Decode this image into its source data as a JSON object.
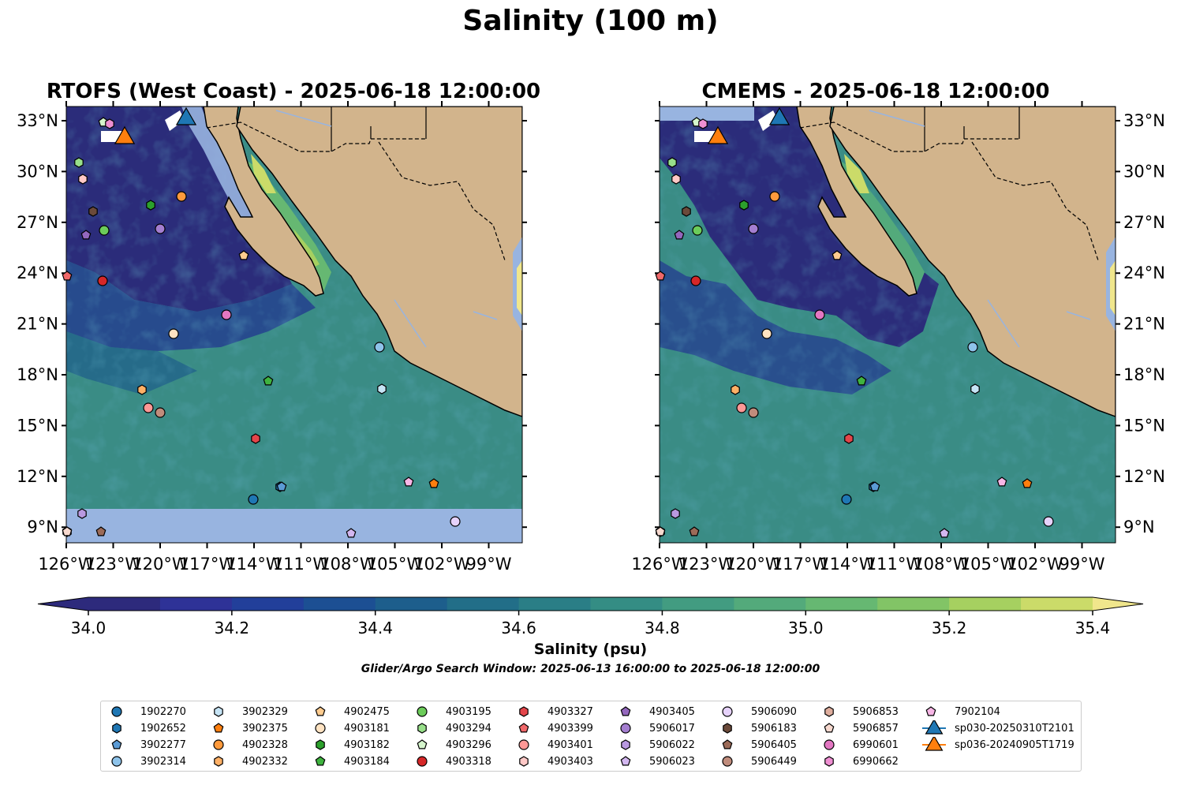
{
  "title": "Salinity (100 m)",
  "maps": {
    "left_title": "RTOFS (West Coast) - 2025-06-18 12:00:00",
    "right_title": "CMEMS - 2025-06-18 12:00:00",
    "lat_ticks": [
      "33°N",
      "30°N",
      "27°N",
      "24°N",
      "21°N",
      "18°N",
      "15°N",
      "12°N",
      "9°N"
    ],
    "lon_ticks": [
      "126°W",
      "123°W",
      "120°W",
      "117°W",
      "114°W",
      "111°W",
      "108°W",
      "105°W",
      "102°W",
      "99°W"
    ],
    "land_color": "#d2b48c",
    "missing_data_color": "#98b4e0"
  },
  "colorbar": {
    "label": "Salinity (psu)",
    "ticks": [
      "34.0",
      "34.2",
      "34.4",
      "34.6",
      "34.8",
      "35.0",
      "35.2",
      "35.4"
    ],
    "colors": [
      "#2d2a7c",
      "#2e3297",
      "#223f9a",
      "#1c4f93",
      "#1d5e8c",
      "#226e88",
      "#2a7e86",
      "#348d84",
      "#429c81",
      "#53aa7b",
      "#66b872",
      "#82c466",
      "#a6d060",
      "#cbdb69",
      "#f0e68c"
    ]
  },
  "search_window": "Glider/Argo Search Window: 2025-06-13 16:00:00 to 2025-06-18 12:00:00",
  "legend": [
    {
      "label": "1902270",
      "marker": "circle",
      "color": "#1f77b4"
    },
    {
      "label": "1902652",
      "marker": "hexagon",
      "color": "#1f77b4"
    },
    {
      "label": "3902277",
      "marker": "pentagon",
      "color": "#5b9bd5"
    },
    {
      "label": "3902314",
      "marker": "circle",
      "color": "#8ec3ea"
    },
    {
      "label": "3902329",
      "marker": "hexagon",
      "color": "#c6e4f5"
    },
    {
      "label": "3902375",
      "marker": "pentagon",
      "color": "#ff7f0e"
    },
    {
      "label": "4902328",
      "marker": "circle",
      "color": "#ff9a3c"
    },
    {
      "label": "4902332",
      "marker": "hexagon",
      "color": "#ffb066"
    },
    {
      "label": "4902475",
      "marker": "pentagon",
      "color": "#ffcc8f"
    },
    {
      "label": "4903181",
      "marker": "circle",
      "color": "#ffe3c2"
    },
    {
      "label": "4903182",
      "marker": "hexagon",
      "color": "#2ca02c"
    },
    {
      "label": "4903184",
      "marker": "pentagon",
      "color": "#3fb33f"
    },
    {
      "label": "4903195",
      "marker": "circle",
      "color": "#6ccc5a"
    },
    {
      "label": "4903294",
      "marker": "hexagon",
      "color": "#98df8a"
    },
    {
      "label": "4903296",
      "marker": "pentagon",
      "color": "#d5f5cc"
    },
    {
      "label": "4903318",
      "marker": "circle",
      "color": "#d62728"
    },
    {
      "label": "4903327",
      "marker": "hexagon",
      "color": "#e3454a"
    },
    {
      "label": "4903399",
      "marker": "pentagon",
      "color": "#f0686a"
    },
    {
      "label": "4903401",
      "marker": "circle",
      "color": "#ff9896"
    },
    {
      "label": "4903403",
      "marker": "hexagon",
      "color": "#ffc9c7"
    },
    {
      "label": "4903405",
      "marker": "pentagon",
      "color": "#9467bd"
    },
    {
      "label": "5906017",
      "marker": "circle",
      "color": "#a47ed0"
    },
    {
      "label": "5906022",
      "marker": "hexagon",
      "color": "#b999e0"
    },
    {
      "label": "5906023",
      "marker": "pentagon",
      "color": "#d3b7f0"
    },
    {
      "label": "5906090",
      "marker": "circle",
      "color": "#e6d2fb"
    },
    {
      "label": "5906183",
      "marker": "hexagon",
      "color": "#6b4a3a"
    },
    {
      "label": "5906405",
      "marker": "pentagon",
      "color": "#9c6b58"
    },
    {
      "label": "5906449",
      "marker": "circle",
      "color": "#c08c7c"
    },
    {
      "label": "5906853",
      "marker": "hexagon",
      "color": "#dfae9e"
    },
    {
      "label": "5906857",
      "marker": "pentagon",
      "color": "#f7d9cf"
    },
    {
      "label": "6990601",
      "marker": "circle",
      "color": "#e377c2"
    },
    {
      "label": "6990662",
      "marker": "hexagon",
      "color": "#ef8fd2"
    },
    {
      "label": "7902104",
      "marker": "pentagon",
      "color": "#f7b6e6"
    },
    {
      "label": "sp030-20250310T2101",
      "marker": "triangle",
      "color": "#1f77b4"
    },
    {
      "label": "sp036-20240905T1719",
      "marker": "triangle",
      "color": "#ff7f0e"
    }
  ]
}
